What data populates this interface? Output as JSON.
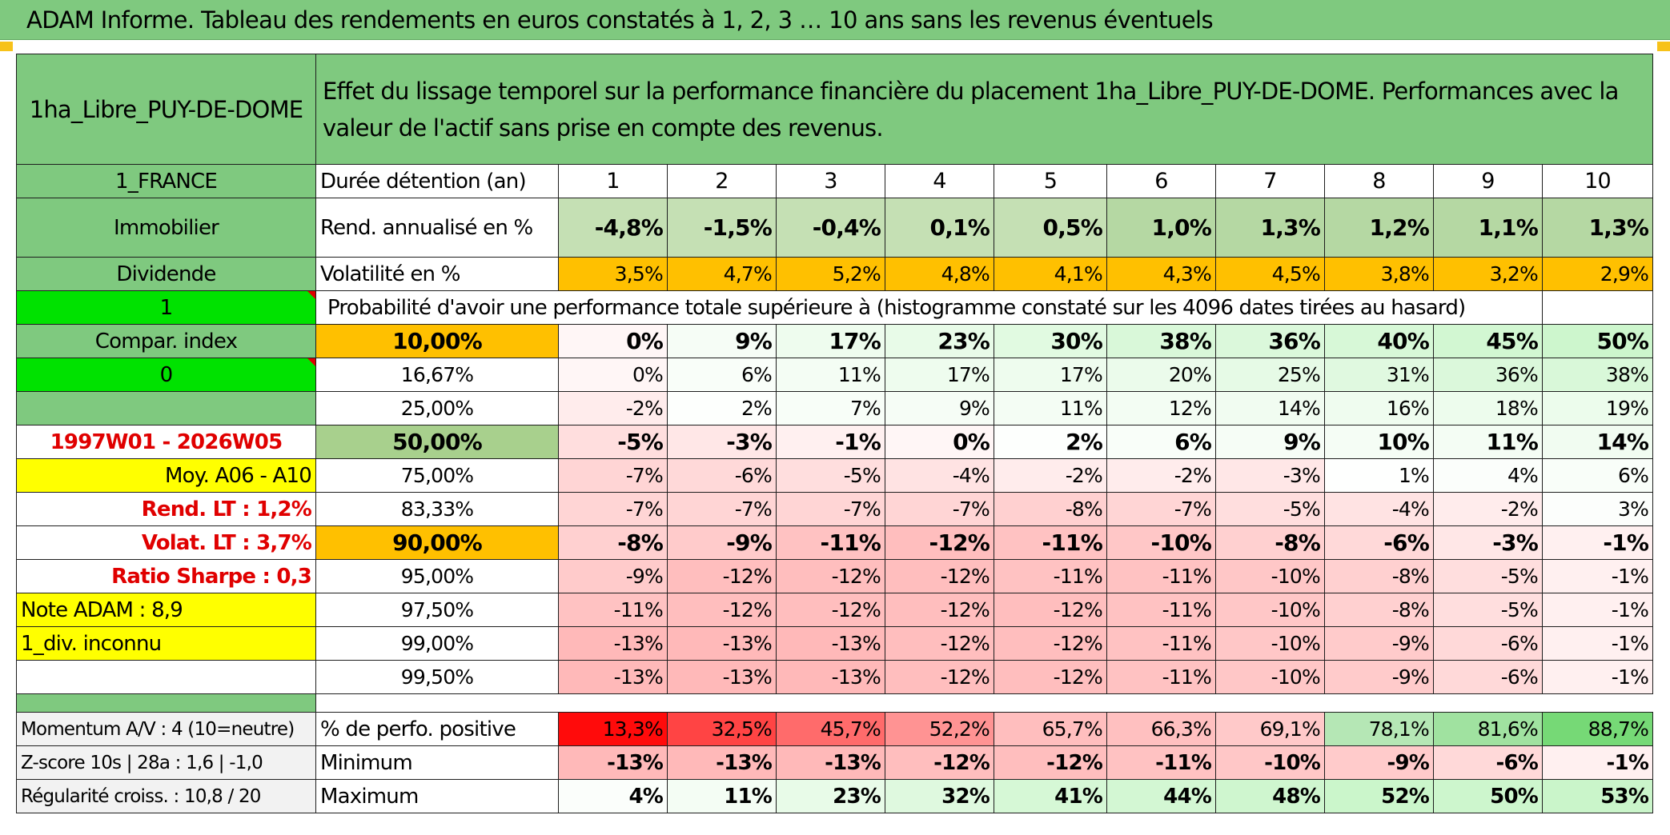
{
  "title": "ADAM Informe. Tableau des rendements en euros constatés à 1, 2, 3 … 10 ans sans les revenus éventuels",
  "header": {
    "asset_name": "1ha_Libre_PUY-DE-DOME",
    "description": "Effet du lissage temporel sur la performance financière du placement 1ha_Libre_PUY-DE-DOME. Performances avec la valeur de l'actif sans prise en compte des revenus."
  },
  "left": {
    "country": "1_FRANCE",
    "category": "Immobilier",
    "dividend": "Dividende",
    "flag1": "1",
    "compar": "Compar. index",
    "flag0": "0",
    "period": "1997W01 - 2026W05",
    "moy": "Moy. A06 - A10",
    "rend_lt": "Rend. LT :   1,2%",
    "volat_lt": "Volat. LT :   3,7%",
    "sharpe": "Ratio Sharpe :    0,3",
    "note": "Note ADAM : 8,9",
    "div": "1_div. inconnu",
    "momentum": "Momentum A/V : 4 (10=neutre)",
    "zscore": "Z-score 10s | 28a : 1,6 | -1,0",
    "regularite": "Régularité croiss. : 10,8 / 20"
  },
  "rows": {
    "duree_label": "Durée détention (an)",
    "years": [
      "1",
      "2",
      "3",
      "4",
      "5",
      "6",
      "7",
      "8",
      "9",
      "10"
    ],
    "rend_label": "Rend. annualisé en %",
    "rend": [
      "-4,8%",
      "-1,5%",
      "-0,4%",
      "0,1%",
      "0,5%",
      "1,0%",
      "1,3%",
      "1,2%",
      "1,1%",
      "1,3%"
    ],
    "vol_label": "Volatilité en %",
    "vol": [
      "3,5%",
      "4,7%",
      "5,2%",
      "4,8%",
      "4,1%",
      "4,3%",
      "4,5%",
      "3,8%",
      "3,2%",
      "2,9%"
    ],
    "prob_label": "Probabilité d'avoir une performance totale supérieure à (histogramme constaté sur les 4096 dates tirées au hasard)"
  },
  "percentiles": [
    {
      "p": "10,00%",
      "v": [
        "0%",
        "9%",
        "17%",
        "23%",
        "30%",
        "38%",
        "36%",
        "40%",
        "45%",
        "50%"
      ]
    },
    {
      "p": "16,67%",
      "v": [
        "0%",
        "6%",
        "11%",
        "17%",
        "17%",
        "20%",
        "25%",
        "31%",
        "36%",
        "38%"
      ]
    },
    {
      "p": "25,00%",
      "v": [
        "-2%",
        "2%",
        "7%",
        "9%",
        "11%",
        "12%",
        "14%",
        "16%",
        "18%",
        "19%"
      ]
    },
    {
      "p": "50,00%",
      "v": [
        "-5%",
        "-3%",
        "-1%",
        "0%",
        "2%",
        "6%",
        "9%",
        "10%",
        "11%",
        "14%"
      ]
    },
    {
      "p": "75,00%",
      "v": [
        "-7%",
        "-6%",
        "-5%",
        "-4%",
        "-2%",
        "-2%",
        "-3%",
        "1%",
        "4%",
        "6%"
      ]
    },
    {
      "p": "83,33%",
      "v": [
        "-7%",
        "-7%",
        "-7%",
        "-7%",
        "-8%",
        "-7%",
        "-5%",
        "-4%",
        "-2%",
        "3%"
      ]
    },
    {
      "p": "90,00%",
      "v": [
        "-8%",
        "-9%",
        "-11%",
        "-12%",
        "-11%",
        "-10%",
        "-8%",
        "-6%",
        "-3%",
        "-1%"
      ]
    },
    {
      "p": "95,00%",
      "v": [
        "-9%",
        "-12%",
        "-12%",
        "-12%",
        "-11%",
        "-11%",
        "-10%",
        "-8%",
        "-5%",
        "-1%"
      ]
    },
    {
      "p": "97,50%",
      "v": [
        "-11%",
        "-12%",
        "-12%",
        "-12%",
        "-12%",
        "-11%",
        "-10%",
        "-8%",
        "-5%",
        "-1%"
      ]
    },
    {
      "p": "99,00%",
      "v": [
        "-13%",
        "-13%",
        "-13%",
        "-12%",
        "-12%",
        "-11%",
        "-10%",
        "-9%",
        "-6%",
        "-1%"
      ]
    },
    {
      "p": "99,50%",
      "v": [
        "-13%",
        "-13%",
        "-13%",
        "-12%",
        "-12%",
        "-11%",
        "-10%",
        "-9%",
        "-6%",
        "-1%"
      ]
    }
  ],
  "bottom": {
    "pos_label": "% de perfo. positive",
    "pos": [
      "13,3%",
      "32,5%",
      "45,7%",
      "52,2%",
      "65,7%",
      "66,3%",
      "69,1%",
      "78,1%",
      "81,6%",
      "88,7%"
    ],
    "min_label": "Minimum",
    "min": [
      "-13%",
      "-13%",
      "-13%",
      "-12%",
      "-12%",
      "-11%",
      "-10%",
      "-9%",
      "-6%",
      "-1%"
    ],
    "max_label": "Maximum",
    "max": [
      "4%",
      "11%",
      "23%",
      "32%",
      "41%",
      "44%",
      "48%",
      "52%",
      "50%",
      "53%"
    ]
  },
  "colors": {
    "header_green": "#7fc97f",
    "bright_green": "#00e200",
    "yellow": "#ffff00",
    "orange": "#ffc000",
    "light_green": "#a8d08d",
    "alert_red": "#e00000"
  }
}
